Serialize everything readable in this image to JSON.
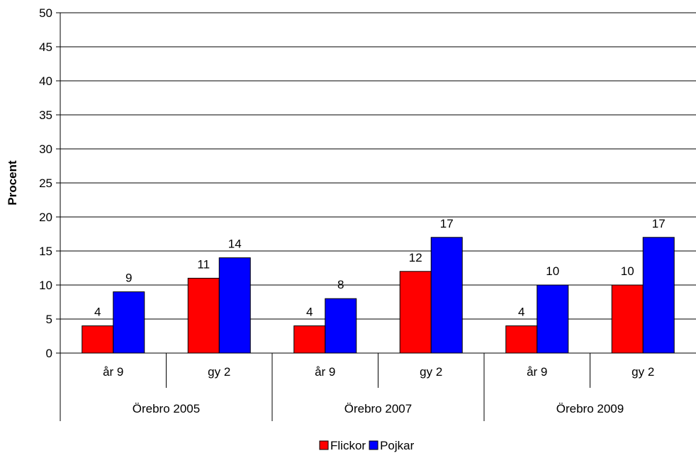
{
  "chart_data": {
    "type": "bar",
    "ylabel": "Procent",
    "ylim": [
      0,
      50
    ],
    "ytick_step": 5,
    "groups": [
      {
        "label": "Örebro 2005",
        "categories": [
          "år 9",
          "gy 2"
        ]
      },
      {
        "label": "Örebro 2007",
        "categories": [
          "år 9",
          "gy 2"
        ]
      },
      {
        "label": "Örebro 2009",
        "categories": [
          "år 9",
          "gy 2"
        ]
      }
    ],
    "categories": [
      "år 9",
      "gy 2",
      "år 9",
      "gy 2",
      "år 9",
      "gy 2"
    ],
    "series": [
      {
        "name": "Flickor",
        "color": "#ff0000",
        "values": [
          4,
          11,
          4,
          12,
          4,
          10
        ]
      },
      {
        "name": "Pojkar",
        "color": "#0000ff",
        "values": [
          9,
          14,
          8,
          17,
          10,
          17
        ]
      }
    ],
    "grid": true,
    "legend_position": "bottom"
  }
}
